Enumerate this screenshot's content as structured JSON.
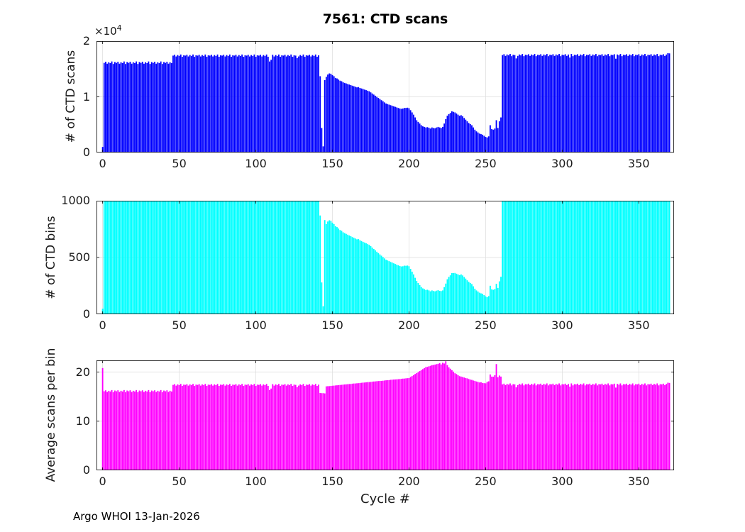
{
  "page": {
    "background": "#ffffff"
  },
  "chart_data": {
    "type": "bar",
    "title": "7561: CTD scans",
    "xlabel": "Cycle #",
    "footer": "Argo WHOI 13-Jan-2026",
    "x_unit": "bars at integer cycle numbers 0-370",
    "xlim": [
      -4,
      373
    ],
    "xticks": [
      0,
      50,
      100,
      150,
      200,
      250,
      300,
      350
    ],
    "xtick_labels": [
      "0",
      "50",
      "100",
      "150",
      "200",
      "250",
      "300",
      "350"
    ],
    "grid": true,
    "subplots": [
      {
        "name": "ctd-scans",
        "ylabel": "# of CTD scans",
        "bar_color": "#0000ff",
        "ylim": [
          0,
          20000
        ],
        "yticks": [
          0,
          10000,
          20000
        ],
        "ytick_labels": [
          "0",
          "1",
          "2"
        ],
        "y_scale_prefix": "×10",
        "y_scale_exp": "4",
        "series": "scans"
      },
      {
        "name": "ctd-bins",
        "ylabel": "# of CTD bins",
        "bar_color": "#00ffff",
        "ylim": [
          0,
          1000
        ],
        "yticks": [
          0,
          500,
          1000
        ],
        "ytick_labels": [
          "0",
          "500",
          "1000"
        ],
        "series": "bins"
      },
      {
        "name": "avg-scans-per-bin",
        "ylabel": "Average scans per bin",
        "bar_color": "#ff00ff",
        "ylim": [
          0,
          22.4
        ],
        "yticks": [
          0,
          10,
          20
        ],
        "ytick_labels": [
          "0",
          "10",
          "20"
        ],
        "series": "scans_per_bin",
        "derived": "scans divided by bins"
      }
    ],
    "series": {
      "scans": [
        1000,
        16100,
        16300,
        15950,
        16200,
        16050,
        16350,
        15900,
        16250,
        16100,
        16300,
        15950,
        16200,
        16050,
        16350,
        15900,
        16250,
        16100,
        16300,
        15950,
        16200,
        16050,
        16350,
        15900,
        16250,
        16100,
        16300,
        15950,
        16200,
        16050,
        16350,
        15900,
        16250,
        16100,
        16300,
        15950,
        16200,
        16050,
        16350,
        15900,
        16250,
        16100,
        16300,
        15950,
        16200,
        16050,
        17400,
        17550,
        17250,
        17500,
        17350,
        17600,
        17200,
        17450,
        17400,
        17550,
        17250,
        17500,
        17350,
        17600,
        17200,
        17450,
        17400,
        17550,
        17250,
        17500,
        17350,
        17600,
        17200,
        17450,
        17400,
        17550,
        17250,
        17500,
        17350,
        17600,
        17200,
        17450,
        17400,
        17550,
        17250,
        17500,
        17350,
        17600,
        17200,
        17450,
        17400,
        17550,
        17250,
        17500,
        17350,
        17600,
        17200,
        17450,
        17400,
        17550,
        17250,
        17500,
        17350,
        17600,
        17200,
        17450,
        17400,
        17550,
        17250,
        17500,
        17350,
        17600,
        17200,
        16350,
        16650,
        17550,
        17250,
        17500,
        17350,
        17600,
        17200,
        17450,
        17400,
        17550,
        17250,
        17500,
        17350,
        17600,
        17200,
        17450,
        17400,
        16950,
        17250,
        17500,
        17350,
        17600,
        17200,
        17450,
        17400,
        17550,
        17250,
        17500,
        17350,
        17600,
        17200,
        17450,
        13700,
        4400,
        1100,
        13000,
        13600,
        14000,
        14200,
        14150,
        13900,
        13700,
        13400,
        13300,
        13100,
        12900,
        12800,
        12600,
        12500,
        12400,
        12300,
        12200,
        12100,
        12000,
        11900,
        11800,
        11700,
        11750,
        11600,
        11500,
        11400,
        11300,
        11200,
        11100,
        11000,
        10800,
        10600,
        10400,
        10200,
        10000,
        9800,
        9600,
        9400,
        9200,
        9000,
        8800,
        8700,
        8600,
        8500,
        8400,
        8300,
        8200,
        8100,
        8000,
        7900,
        7850,
        7900,
        8000,
        8000,
        8050,
        7950,
        7600,
        7200,
        6800,
        6300,
        5800,
        5500,
        5200,
        4900,
        4700,
        4600,
        4500,
        4550,
        4450,
        4300,
        4500,
        4400,
        4350,
        4500,
        4600,
        4500,
        4400,
        4600,
        5200,
        6000,
        6600,
        6900,
        7100,
        7400,
        7300,
        7200,
        7000,
        6800,
        6600,
        6700,
        6500,
        6200,
        5900,
        5600,
        5300,
        5100,
        4900,
        4500,
        4100,
        3800,
        3600,
        3400,
        3300,
        3200,
        3000,
        2800,
        2700,
        2900,
        4900,
        4200,
        4100,
        4300,
        5800,
        4400,
        5600,
        6300,
        17500,
        17650,
        17350,
        17600,
        17450,
        17700,
        17300,
        17550,
        17500,
        16900,
        17350,
        17600,
        17450,
        17700,
        17300,
        17550,
        17500,
        17650,
        17350,
        17600,
        17450,
        17700,
        17300,
        17550,
        17500,
        17650,
        17350,
        17600,
        17450,
        17700,
        17300,
        17550,
        17500,
        17650,
        17350,
        17600,
        17450,
        17700,
        17300,
        17550,
        17500,
        17650,
        17350,
        17600,
        17050,
        17700,
        17300,
        17550,
        17500,
        17650,
        17350,
        17600,
        17450,
        17700,
        17300,
        17550,
        17500,
        17650,
        17350,
        17600,
        17450,
        17700,
        17300,
        17550,
        17500,
        17650,
        17350,
        17600,
        17450,
        17700,
        17300,
        17550,
        17500,
        17650,
        16850,
        17600,
        17450,
        17700,
        17300,
        17550,
        17500,
        17650,
        17350,
        17600,
        17450,
        17700,
        17300,
        17550,
        17500,
        17650,
        17350,
        17600,
        17450,
        17700,
        17300,
        17550,
        17500,
        17650,
        17350,
        17600,
        17450,
        17700,
        17300,
        17550,
        17500,
        17650,
        17350,
        17600,
        17850,
        17800
      ],
      "bins": [
        48,
        1000,
        1000,
        1000,
        1000,
        1000,
        1000,
        1000,
        1000,
        1000,
        1000,
        1000,
        1000,
        1000,
        1000,
        1000,
        1000,
        1000,
        1000,
        1000,
        1000,
        1000,
        1000,
        1000,
        1000,
        1000,
        1000,
        1000,
        1000,
        1000,
        1000,
        1000,
        1000,
        1000,
        1000,
        1000,
        1000,
        1000,
        1000,
        1000,
        1000,
        1000,
        1000,
        1000,
        1000,
        1000,
        1000,
        1000,
        1000,
        1000,
        1000,
        1000,
        1000,
        1000,
        1000,
        1000,
        1000,
        1000,
        1000,
        1000,
        1000,
        1000,
        1000,
        1000,
        1000,
        1000,
        1000,
        1000,
        1000,
        1000,
        1000,
        1000,
        1000,
        1000,
        1000,
        1000,
        1000,
        1000,
        1000,
        1000,
        1000,
        1000,
        1000,
        1000,
        1000,
        1000,
        1000,
        1000,
        1000,
        1000,
        1000,
        1000,
        1000,
        1000,
        1000,
        1000,
        1000,
        1000,
        1000,
        1000,
        1000,
        1000,
        1000,
        1000,
        1000,
        1000,
        1000,
        1000,
        1000,
        1000,
        1000,
        1000,
        1000,
        1000,
        1000,
        1000,
        1000,
        1000,
        1000,
        1000,
        1000,
        1000,
        1000,
        1000,
        1000,
        1000,
        1000,
        1000,
        1000,
        1000,
        1000,
        1000,
        1000,
        1000,
        1000,
        1000,
        1000,
        1000,
        1000,
        1000,
        1000,
        1000,
        870,
        280,
        70,
        830,
        795,
        817,
        828,
        823,
        807,
        794,
        775,
        768,
        755,
        742,
        735,
        722,
        715,
        708,
        701,
        694,
        688,
        680,
        673,
        667,
        660,
        662,
        652,
        645,
        638,
        632,
        625,
        618,
        612,
        600,
        587,
        575,
        563,
        551,
        539,
        527,
        516,
        504,
        492,
        480,
        474,
        468,
        461,
        455,
        449,
        443,
        437,
        431,
        425,
        421,
        423,
        428,
        427,
        429,
        423,
        400,
        375,
        351,
        321,
        293,
        275,
        257,
        240,
        228,
        221,
        214,
        216,
        210,
        202,
        210,
        205,
        202,
        208,
        212,
        206,
        204,
        210,
        239,
        270,
        308,
        329,
        343,
        363,
        363,
        364,
        357,
        351,
        344,
        351,
        342,
        328,
        314,
        299,
        285,
        276,
        266,
        246,
        225,
        210,
        200,
        190,
        184,
        180,
        169,
        158,
        150,
        160,
        251,
        220,
        215,
        222,
        268,
        232,
        290,
        330,
        1000,
        1000,
        1000,
        1000,
        1000,
        1000,
        1000,
        1000,
        1000,
        1000,
        1000,
        1000,
        1000,
        1000,
        1000,
        1000,
        1000,
        1000,
        1000,
        1000,
        1000,
        1000,
        1000,
        1000,
        1000,
        1000,
        1000,
        1000,
        1000,
        1000,
        1000,
        1000,
        1000,
        1000,
        1000,
        1000,
        1000,
        1000,
        1000,
        1000,
        1000,
        1000,
        1000,
        1000,
        1000,
        1000,
        1000,
        1000,
        1000,
        1000,
        1000,
        1000,
        1000,
        1000,
        1000,
        1000,
        1000,
        1000,
        1000,
        1000,
        1000,
        1000,
        1000,
        1000,
        1000,
        1000,
        1000,
        1000,
        1000,
        1000,
        1000,
        1000,
        1000,
        1000,
        1000,
        1000,
        1000,
        1000,
        1000,
        1000,
        1000,
        1000,
        1000,
        1000,
        1000,
        1000,
        1000,
        1000,
        1000,
        1000,
        1000,
        1000,
        1000,
        1000,
        1000,
        1000,
        1000,
        1000,
        1000,
        1000,
        1000,
        1000,
        1000,
        1000,
        1000,
        1000,
        1000,
        1000,
        1000,
        1000
      ]
    }
  }
}
